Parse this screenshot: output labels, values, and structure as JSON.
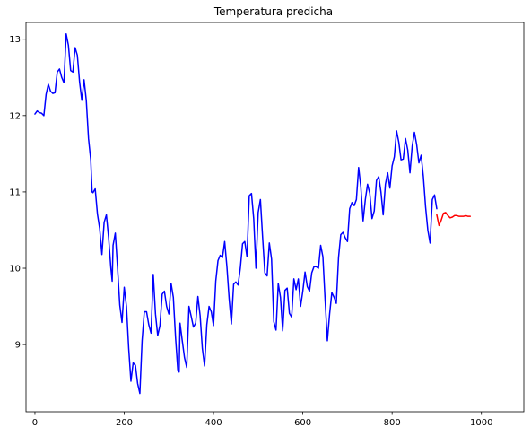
{
  "chart_data": {
    "type": "line",
    "title": "Temperatura predicha",
    "xlabel": "",
    "ylabel": "",
    "xlim": [
      -20,
      1095
    ],
    "ylim": [
      8.12,
      13.22
    ],
    "xticks": [
      0,
      200,
      400,
      600,
      800,
      1000
    ],
    "xtick_labels": [
      "0",
      "200",
      "400",
      "600",
      "800",
      "1000"
    ],
    "yticks": [
      9,
      10,
      11,
      12,
      13
    ],
    "ytick_labels": [
      "9",
      "10",
      "11",
      "12",
      "13"
    ],
    "grid": false,
    "legend": "none",
    "series": [
      {
        "color": "#0000ff",
        "points": [
          [
            0,
            12.02
          ],
          [
            5,
            12.06
          ],
          [
            10,
            12.04
          ],
          [
            15,
            12.03
          ],
          [
            20,
            12.0
          ],
          [
            25,
            12.28
          ],
          [
            30,
            12.41
          ],
          [
            35,
            12.32
          ],
          [
            40,
            12.29
          ],
          [
            45,
            12.3
          ],
          [
            50,
            12.57
          ],
          [
            55,
            12.61
          ],
          [
            60,
            12.5
          ],
          [
            65,
            12.43
          ],
          [
            70,
            13.07
          ],
          [
            75,
            12.92
          ],
          [
            80,
            12.59
          ],
          [
            85,
            12.57
          ],
          [
            90,
            12.89
          ],
          [
            95,
            12.79
          ],
          [
            100,
            12.44
          ],
          [
            105,
            12.2
          ],
          [
            110,
            12.47
          ],
          [
            115,
            12.2
          ],
          [
            120,
            11.7
          ],
          [
            125,
            11.42
          ],
          [
            128,
            11.0
          ],
          [
            130,
            10.99
          ],
          [
            135,
            11.04
          ],
          [
            140,
            10.71
          ],
          [
            145,
            10.52
          ],
          [
            150,
            10.18
          ],
          [
            155,
            10.6
          ],
          [
            160,
            10.7
          ],
          [
            165,
            10.4
          ],
          [
            170,
            10.01
          ],
          [
            173,
            9.83
          ],
          [
            175,
            10.3
          ],
          [
            180,
            10.46
          ],
          [
            185,
            10.01
          ],
          [
            190,
            9.52
          ],
          [
            195,
            9.29
          ],
          [
            200,
            9.75
          ],
          [
            205,
            9.5
          ],
          [
            210,
            8.95
          ],
          [
            215,
            8.52
          ],
          [
            220,
            8.76
          ],
          [
            225,
            8.73
          ],
          [
            230,
            8.49
          ],
          [
            235,
            8.36
          ],
          [
            240,
            9.05
          ],
          [
            245,
            9.43
          ],
          [
            250,
            9.43
          ],
          [
            255,
            9.26
          ],
          [
            260,
            9.15
          ],
          [
            265,
            9.92
          ],
          [
            270,
            9.4
          ],
          [
            275,
            9.12
          ],
          [
            280,
            9.25
          ],
          [
            285,
            9.66
          ],
          [
            290,
            9.7
          ],
          [
            295,
            9.5
          ],
          [
            300,
            9.4
          ],
          [
            305,
            9.8
          ],
          [
            310,
            9.62
          ],
          [
            315,
            9.09
          ],
          [
            320,
            8.67
          ],
          [
            323,
            8.64
          ],
          [
            325,
            9.28
          ],
          [
            330,
            9.05
          ],
          [
            335,
            8.83
          ],
          [
            340,
            8.7
          ],
          [
            345,
            9.5
          ],
          [
            350,
            9.37
          ],
          [
            355,
            9.23
          ],
          [
            360,
            9.28
          ],
          [
            365,
            9.63
          ],
          [
            370,
            9.38
          ],
          [
            375,
            8.95
          ],
          [
            380,
            8.72
          ],
          [
            385,
            9.26
          ],
          [
            390,
            9.5
          ],
          [
            395,
            9.43
          ],
          [
            400,
            9.25
          ],
          [
            405,
            9.83
          ],
          [
            410,
            10.1
          ],
          [
            415,
            10.17
          ],
          [
            420,
            10.14
          ],
          [
            425,
            10.35
          ],
          [
            430,
            10.02
          ],
          [
            435,
            9.6
          ],
          [
            440,
            9.27
          ],
          [
            445,
            9.79
          ],
          [
            450,
            9.82
          ],
          [
            455,
            9.78
          ],
          [
            460,
            10.0
          ],
          [
            465,
            10.32
          ],
          [
            470,
            10.35
          ],
          [
            475,
            10.15
          ],
          [
            480,
            10.95
          ],
          [
            485,
            10.98
          ],
          [
            490,
            10.65
          ],
          [
            495,
            10.0
          ],
          [
            500,
            10.73
          ],
          [
            505,
            10.9
          ],
          [
            510,
            10.4
          ],
          [
            515,
            9.94
          ],
          [
            520,
            9.9
          ],
          [
            525,
            10.33
          ],
          [
            530,
            10.12
          ],
          [
            535,
            9.3
          ],
          [
            540,
            9.19
          ],
          [
            545,
            9.8
          ],
          [
            550,
            9.62
          ],
          [
            555,
            9.18
          ],
          [
            560,
            9.71
          ],
          [
            565,
            9.74
          ],
          [
            570,
            9.41
          ],
          [
            575,
            9.36
          ],
          [
            580,
            9.86
          ],
          [
            585,
            9.72
          ],
          [
            590,
            9.86
          ],
          [
            595,
            9.5
          ],
          [
            600,
            9.7
          ],
          [
            605,
            9.95
          ],
          [
            610,
            9.76
          ],
          [
            615,
            9.7
          ],
          [
            620,
            9.94
          ],
          [
            625,
            10.02
          ],
          [
            630,
            10.02
          ],
          [
            635,
            10.0
          ],
          [
            640,
            10.3
          ],
          [
            645,
            10.15
          ],
          [
            650,
            9.58
          ],
          [
            655,
            9.05
          ],
          [
            660,
            9.4
          ],
          [
            665,
            9.68
          ],
          [
            670,
            9.62
          ],
          [
            675,
            9.54
          ],
          [
            680,
            10.14
          ],
          [
            685,
            10.44
          ],
          [
            690,
            10.47
          ],
          [
            695,
            10.4
          ],
          [
            700,
            10.35
          ],
          [
            705,
            10.78
          ],
          [
            710,
            10.86
          ],
          [
            715,
            10.82
          ],
          [
            720,
            10.9
          ],
          [
            725,
            11.32
          ],
          [
            730,
            11.06
          ],
          [
            735,
            10.62
          ],
          [
            740,
            10.9
          ],
          [
            745,
            11.1
          ],
          [
            750,
            10.98
          ],
          [
            755,
            10.65
          ],
          [
            760,
            10.75
          ],
          [
            765,
            11.15
          ],
          [
            770,
            11.2
          ],
          [
            775,
            11.0
          ],
          [
            780,
            10.7
          ],
          [
            785,
            11.1
          ],
          [
            790,
            11.25
          ],
          [
            795,
            11.05
          ],
          [
            800,
            11.34
          ],
          [
            805,
            11.46
          ],
          [
            810,
            11.8
          ],
          [
            815,
            11.65
          ],
          [
            820,
            11.42
          ],
          [
            825,
            11.43
          ],
          [
            830,
            11.7
          ],
          [
            835,
            11.55
          ],
          [
            840,
            11.25
          ],
          [
            845,
            11.6
          ],
          [
            850,
            11.78
          ],
          [
            855,
            11.62
          ],
          [
            860,
            11.38
          ],
          [
            865,
            11.48
          ],
          [
            870,
            11.2
          ],
          [
            875,
            10.8
          ],
          [
            880,
            10.5
          ],
          [
            885,
            10.33
          ],
          [
            890,
            10.9
          ],
          [
            895,
            10.96
          ],
          [
            900,
            10.78
          ]
        ]
      },
      {
        "color": "#ff0000",
        "points": [
          [
            900,
            10.7
          ],
          [
            905,
            10.56
          ],
          [
            910,
            10.63
          ],
          [
            915,
            10.72
          ],
          [
            920,
            10.73
          ],
          [
            925,
            10.69
          ],
          [
            930,
            10.66
          ],
          [
            935,
            10.67
          ],
          [
            940,
            10.69
          ],
          [
            945,
            10.69
          ],
          [
            950,
            10.68
          ],
          [
            955,
            10.68
          ],
          [
            960,
            10.68
          ],
          [
            965,
            10.69
          ],
          [
            970,
            10.68
          ],
          [
            975,
            10.68
          ]
        ]
      }
    ]
  }
}
